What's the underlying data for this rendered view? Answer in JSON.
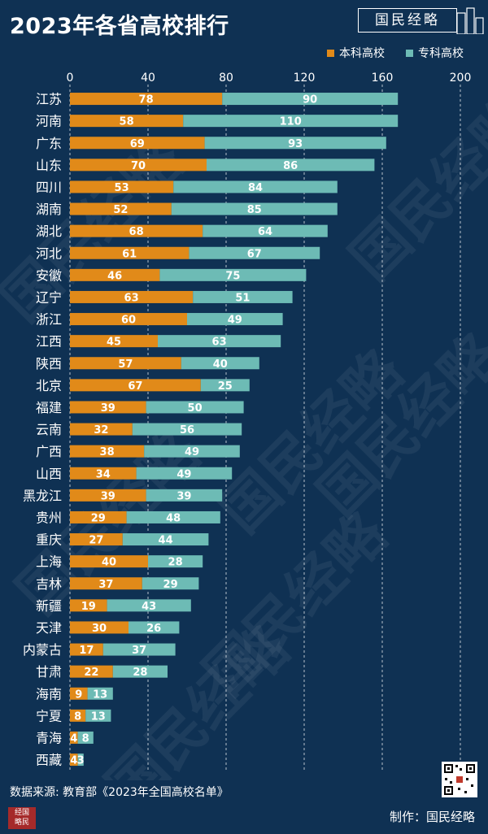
{
  "header": {
    "title": "2023年各省高校排行",
    "brand": "国民经略"
  },
  "legend": {
    "undergrad": "本科高校",
    "vocational": "专科高校"
  },
  "colors": {
    "background": "#0f3153",
    "undergrad": "#e18a19",
    "vocational": "#6dbbb5",
    "grid": "#ffffff"
  },
  "footer": {
    "source": "数据来源: 教育部《2023年全国高校名单》",
    "credit": "制作：国民经略",
    "logo_line1": "经国",
    "logo_line2": "略民"
  },
  "watermark": "国民经略",
  "chart_data": {
    "type": "bar",
    "orientation": "horizontal",
    "stacked": true,
    "title": "2023年各省高校排行",
    "xlim": [
      0,
      200
    ],
    "xticks": [
      0,
      40,
      80,
      120,
      160,
      200
    ],
    "grid": true,
    "legend_position": "top-right",
    "categories": [
      "江苏",
      "河南",
      "广东",
      "山东",
      "四川",
      "湖南",
      "湖北",
      "河北",
      "安徽",
      "辽宁",
      "浙江",
      "江西",
      "陕西",
      "北京",
      "福建",
      "云南",
      "广西",
      "山西",
      "黑龙江",
      "贵州",
      "重庆",
      "上海",
      "吉林",
      "新疆",
      "天津",
      "内蒙古",
      "甘肃",
      "海南",
      "宁夏",
      "青海",
      "西藏"
    ],
    "series": [
      {
        "name": "本科高校",
        "values": [
          78,
          58,
          69,
          70,
          53,
          52,
          68,
          61,
          46,
          63,
          60,
          45,
          57,
          67,
          39,
          32,
          38,
          34,
          39,
          29,
          27,
          40,
          37,
          19,
          30,
          17,
          22,
          9,
          8,
          4,
          4
        ]
      },
      {
        "name": "专科高校",
        "values": [
          90,
          110,
          93,
          86,
          84,
          85,
          64,
          67,
          75,
          51,
          49,
          63,
          40,
          25,
          50,
          56,
          49,
          49,
          39,
          48,
          44,
          28,
          29,
          43,
          26,
          37,
          28,
          13,
          13,
          8,
          3
        ]
      }
    ]
  }
}
